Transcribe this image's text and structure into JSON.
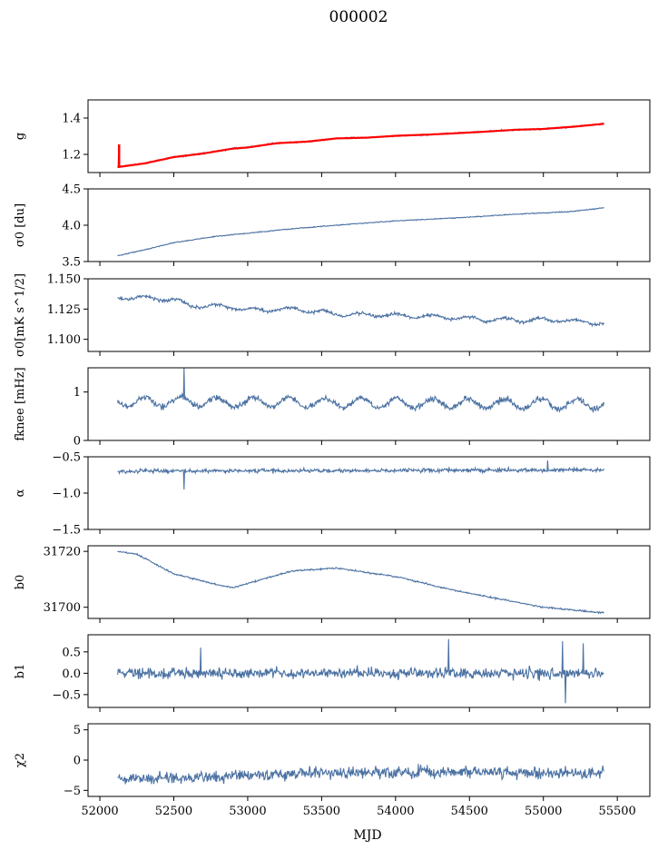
{
  "title": "000002",
  "x_label": "MJD",
  "colors": {
    "series": "#4c72a3",
    "fit": "#ff0000",
    "axis": "#000000"
  },
  "chart_data": {
    "type": "line",
    "xlim": [
      51920,
      55720
    ],
    "x_ticks": [
      52000,
      52500,
      53000,
      53500,
      54000,
      54500,
      55000,
      55500
    ],
    "x_tick_labels": [
      "52000",
      "52500",
      "53000",
      "53500",
      "54000",
      "54500",
      "55000",
      "55500"
    ],
    "x_range": [
      52120,
      55410
    ],
    "panels": [
      {
        "id": "g",
        "ylabel": "g",
        "ylim": [
          1.1,
          1.5
        ],
        "yticks": [
          1.2,
          1.4
        ],
        "ytick_labels": [
          "1.2",
          "1.4"
        ],
        "anchors": [
          [
            52120,
            1.13
          ],
          [
            52300,
            1.15
          ],
          [
            52500,
            1.185
          ],
          [
            52700,
            1.205
          ],
          [
            52900,
            1.232
          ],
          [
            53000,
            1.238
          ],
          [
            53200,
            1.262
          ],
          [
            53400,
            1.27
          ],
          [
            53600,
            1.288
          ],
          [
            53800,
            1.292
          ],
          [
            54000,
            1.302
          ],
          [
            54200,
            1.308
          ],
          [
            54400,
            1.316
          ],
          [
            54600,
            1.325
          ],
          [
            54800,
            1.335
          ],
          [
            55000,
            1.34
          ],
          [
            55200,
            1.352
          ],
          [
            55400,
            1.368
          ]
        ],
        "noise": 0.004,
        "fit_overlay": true,
        "spikes": [
          [
            52130,
            1.255
          ]
        ]
      },
      {
        "id": "sigma0_du",
        "ylabel": "σ0 [du]",
        "ylim": [
          3.5,
          4.5
        ],
        "yticks": [
          3.5,
          4.0,
          4.5
        ],
        "ytick_labels": [
          "3.5",
          "4.0",
          "4.5"
        ],
        "anchors": [
          [
            52120,
            3.58
          ],
          [
            52300,
            3.66
          ],
          [
            52500,
            3.76
          ],
          [
            52800,
            3.85
          ],
          [
            53000,
            3.89
          ],
          [
            53300,
            3.95
          ],
          [
            53600,
            4.0
          ],
          [
            54000,
            4.06
          ],
          [
            54400,
            4.1
          ],
          [
            54800,
            4.15
          ],
          [
            55200,
            4.19
          ],
          [
            55410,
            4.24
          ]
        ],
        "noise": 0.006,
        "spikes": []
      },
      {
        "id": "sigma0_mks",
        "ylabel": "σ0[mK s^1/2]",
        "ylim": [
          1.09,
          1.15
        ],
        "yticks": [
          1.1,
          1.125,
          1.15
        ],
        "ytick_labels": [
          "1.100",
          "1.125",
          "1.150"
        ],
        "anchors": [
          [
            52120,
            1.135
          ],
          [
            52500,
            1.133
          ],
          [
            52600,
            1.128
          ],
          [
            52900,
            1.127
          ],
          [
            53000,
            1.124
          ],
          [
            53300,
            1.125
          ],
          [
            53600,
            1.121
          ],
          [
            53900,
            1.12
          ],
          [
            54200,
            1.119
          ],
          [
            54500,
            1.117
          ],
          [
            54800,
            1.116
          ],
          [
            55100,
            1.116
          ],
          [
            55410,
            1.113
          ]
        ],
        "noise": 0.0012,
        "wave": 0.0015,
        "spikes": []
      },
      {
        "id": "fknee",
        "ylabel": "fknee [mHz]",
        "ylim": [
          0,
          1.5
        ],
        "yticks": [
          0,
          1
        ],
        "ytick_labels": [
          "0",
          "1"
        ],
        "anchors": [
          [
            52120,
            0.8
          ],
          [
            55410,
            0.75
          ]
        ],
        "noise": 0.06,
        "wave": 0.1,
        "spikes": [
          [
            52570,
            1.5
          ]
        ]
      },
      {
        "id": "alpha",
        "ylabel": "α",
        "ylim": [
          -1.5,
          -0.5
        ],
        "yticks": [
          -1.5,
          -1.0,
          -0.5
        ],
        "ytick_labels": [
          "−1.5",
          "−1.0",
          "−0.5"
        ],
        "anchors": [
          [
            52120,
            -0.7
          ],
          [
            55410,
            -0.68
          ]
        ],
        "noise": 0.025,
        "spikes": [
          [
            52570,
            -0.95
          ],
          [
            55030,
            -0.55
          ]
        ]
      },
      {
        "id": "b0",
        "ylabel": "b0",
        "ylim": [
          31696,
          31722
        ],
        "yticks": [
          31700,
          31720
        ],
        "ytick_labels": [
          "31700",
          "31720"
        ],
        "anchors": [
          [
            52120,
            31720
          ],
          [
            52250,
            31719
          ],
          [
            52500,
            31712
          ],
          [
            52800,
            31708
          ],
          [
            52900,
            31707
          ],
          [
            53100,
            31710
          ],
          [
            53300,
            31713
          ],
          [
            53600,
            31714
          ],
          [
            54000,
            31711
          ],
          [
            54400,
            31706
          ],
          [
            54800,
            31702
          ],
          [
            55000,
            31700
          ],
          [
            55200,
            31699
          ],
          [
            55410,
            31698
          ]
        ],
        "noise": 0.25,
        "spikes": []
      },
      {
        "id": "b1",
        "ylabel": "b1",
        "ylim": [
          -0.8,
          0.9
        ],
        "yticks": [
          -0.5,
          0.0,
          0.5
        ],
        "ytick_labels": [
          "−0.5",
          "0.0",
          "0.5"
        ],
        "anchors": [
          [
            52120,
            0.0
          ],
          [
            55410,
            0.0
          ]
        ],
        "noise": 0.12,
        "spikes": [
          [
            52680,
            0.6
          ],
          [
            54360,
            0.8
          ],
          [
            55130,
            0.75
          ],
          [
            55150,
            -0.7
          ],
          [
            55270,
            0.7
          ]
        ]
      },
      {
        "id": "chi2",
        "ylabel": "χ2",
        "ylim": [
          -6,
          6
        ],
        "yticks": [
          -5,
          0,
          5
        ],
        "ytick_labels": [
          "−5",
          "0",
          "5"
        ],
        "anchors": [
          [
            52120,
            -3.0
          ],
          [
            52600,
            -3.0
          ],
          [
            53300,
            -2.2
          ],
          [
            54200,
            -2.0
          ],
          [
            55410,
            -2.2
          ]
        ],
        "noise": 0.9,
        "spikes": []
      }
    ]
  }
}
